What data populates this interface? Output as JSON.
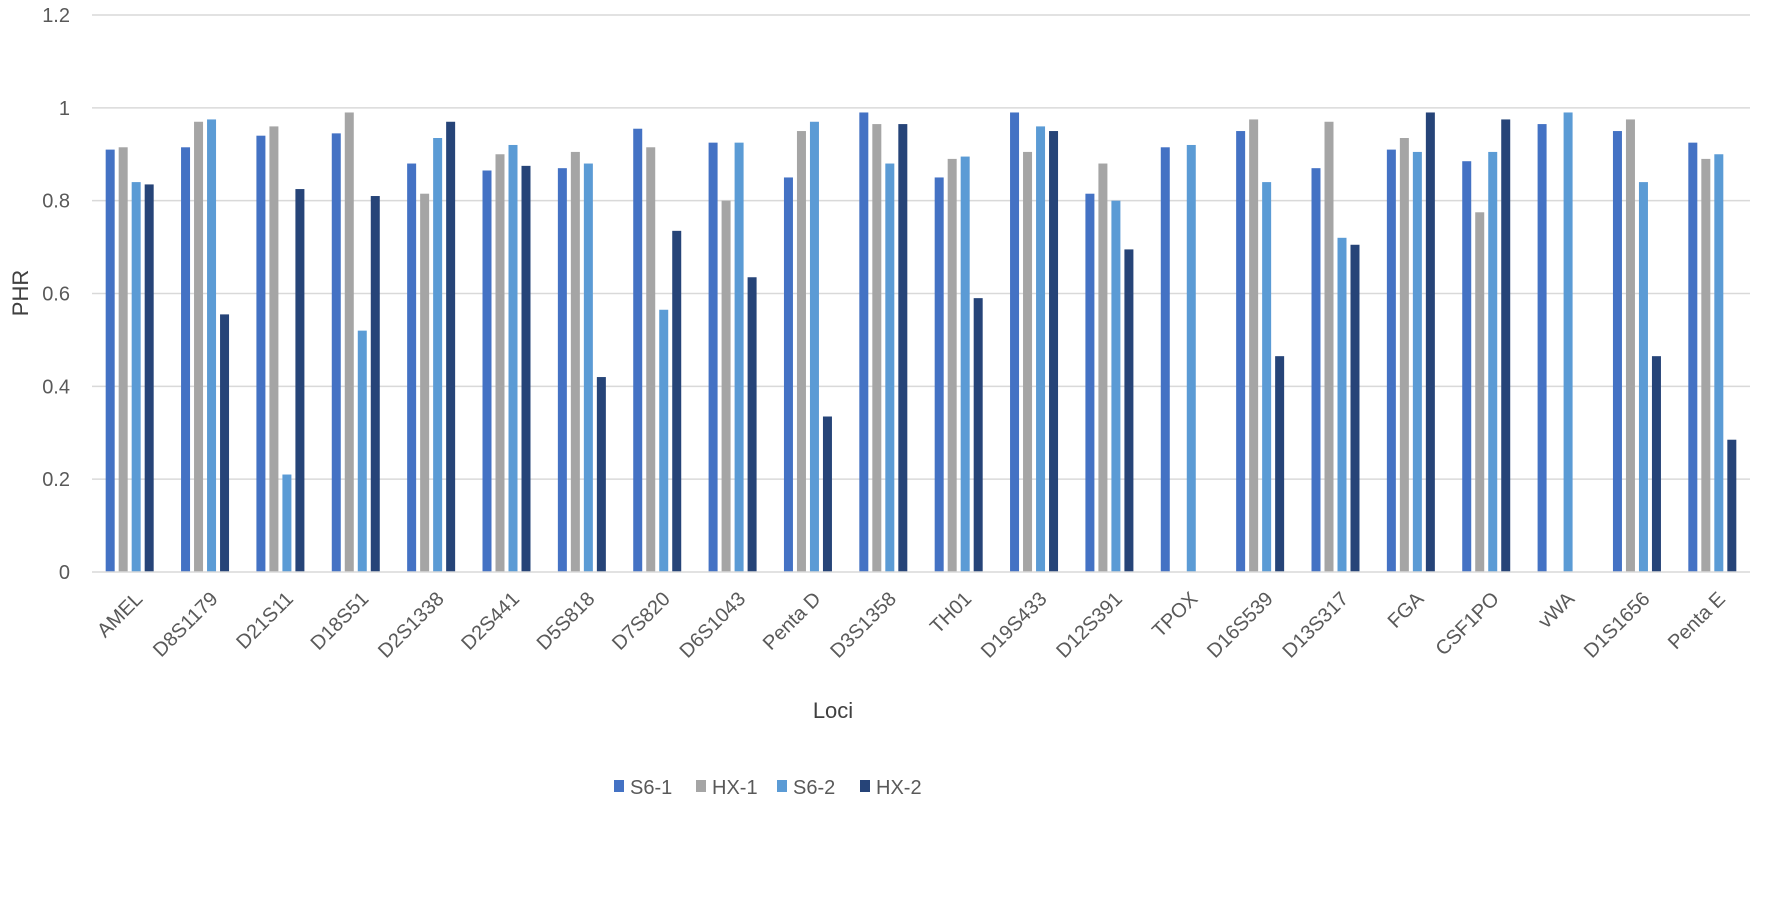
{
  "chart_data": {
    "type": "bar",
    "xlabel": "Loci",
    "ylabel": "PHR",
    "ylim": [
      0,
      1.2
    ],
    "yticks": [
      "0",
      "0.2",
      "0.4",
      "0.6",
      "0.8",
      "1",
      "1.2"
    ],
    "grid": true,
    "legend_position": "bottom",
    "categories": [
      "AMEL",
      "D8S1179",
      "D21S11",
      "D18S51",
      "D2S1338",
      "D2S441",
      "D5S818",
      "D7S820",
      "D6S1043",
      "Penta D",
      "D3S1358",
      "TH01",
      "D19S433",
      "D12S391",
      "TPOX",
      "D16S539",
      "D13S317",
      "FGA",
      "CSF1PO",
      "vWA",
      "D1S1656",
      "Penta E"
    ],
    "series": [
      {
        "name": "S6-1",
        "color": "#4472C4",
        "values": [
          0.91,
          0.915,
          0.94,
          0.945,
          0.88,
          0.865,
          0.87,
          0.955,
          0.925,
          0.85,
          0.99,
          0.85,
          0.99,
          0.815,
          0.915,
          0.95,
          0.87,
          0.91,
          0.885,
          0.965,
          0.95,
          0.925
        ]
      },
      {
        "name": "HX-1",
        "color": "#A5A5A5",
        "values": [
          0.915,
          0.97,
          0.96,
          0.99,
          0.815,
          0.9,
          0.905,
          0.915,
          0.8,
          0.95,
          0.965,
          0.89,
          0.905,
          0.88,
          null,
          0.975,
          0.97,
          0.935,
          0.775,
          null,
          0.975,
          0.89
        ]
      },
      {
        "name": "S6-2",
        "color": "#5B9BD5",
        "values": [
          0.84,
          0.975,
          0.21,
          0.52,
          0.935,
          0.92,
          0.88,
          0.565,
          0.925,
          0.97,
          0.88,
          0.895,
          0.96,
          0.8,
          0.92,
          0.84,
          0.72,
          0.905,
          0.905,
          0.99,
          0.84,
          0.9
        ]
      },
      {
        "name": "HX-2",
        "color": "#264478",
        "values": [
          0.835,
          0.555,
          0.825,
          0.81,
          0.97,
          0.875,
          0.42,
          0.735,
          0.635,
          0.335,
          0.965,
          0.59,
          0.95,
          0.695,
          null,
          0.465,
          0.705,
          0.99,
          0.975,
          null,
          0.465,
          0.285
        ]
      }
    ]
  }
}
